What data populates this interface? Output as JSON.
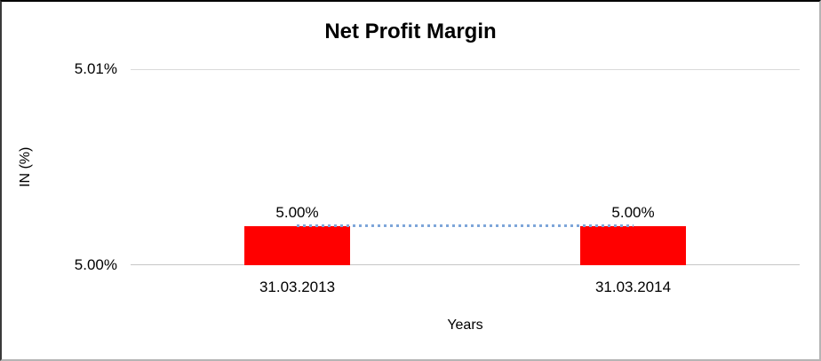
{
  "chart_data": {
    "type": "bar",
    "title": "Net Profit Margin",
    "xlabel": "Years",
    "ylabel": "IN (%)",
    "categories": [
      "31.03.2013",
      "31.03.2014"
    ],
    "series": [
      {
        "name": "Net Profit Margin",
        "type": "bar",
        "values": [
          5.002,
          5.002
        ],
        "color": "#FF0000"
      },
      {
        "name": "trend-connector",
        "type": "line",
        "line_style": "dotted",
        "values": [
          5.002,
          5.002
        ],
        "color": "#7EA6D9"
      }
    ],
    "data_labels": [
      "5.00%",
      "5.00%"
    ],
    "yticks": [
      {
        "value": 5.01,
        "label": "5.01%"
      },
      {
        "value": 5.0,
        "label": "5.00%"
      }
    ],
    "ylim": [
      5.0,
      5.01
    ],
    "grid": "horizontal, top gridline only",
    "legend": "none",
    "gridline_color": "#D9D9D9",
    "axis_line_color": "#C6C6C6"
  }
}
